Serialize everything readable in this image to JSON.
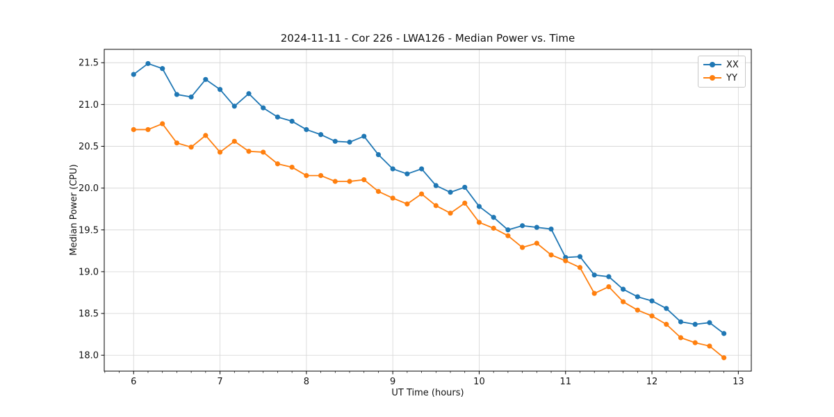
{
  "chart_data": {
    "type": "line",
    "title": "2024-11-11 - Cor 226 - LWA126 - Median Power vs. Time",
    "xlabel": "UT Time (hours)",
    "ylabel": "Median Power (CPU)",
    "xlim": [
      5.66,
      13.15
    ],
    "ylim": [
      17.81,
      21.66
    ],
    "xticks": [
      6,
      7,
      8,
      9,
      10,
      11,
      12,
      13
    ],
    "yticks": [
      18.0,
      18.5,
      19.0,
      19.5,
      20.0,
      20.5,
      21.0,
      21.5
    ],
    "x_minor_step": 0.1666667,
    "grid": true,
    "legend_position": "top-right",
    "x": [
      6.0,
      6.1667,
      6.3333,
      6.5,
      6.6667,
      6.8333,
      7.0,
      7.1667,
      7.3333,
      7.5,
      7.6667,
      7.8333,
      8.0,
      8.1667,
      8.3333,
      8.5,
      8.6667,
      8.8333,
      9.0,
      9.1667,
      9.3333,
      9.5,
      9.6667,
      9.8333,
      10.0,
      10.1667,
      10.3333,
      10.5,
      10.6667,
      10.8333,
      11.0,
      11.1667,
      11.3333,
      11.5,
      11.6667,
      11.8333,
      12.0,
      12.1667,
      12.3333,
      12.5,
      12.6667,
      12.8333
    ],
    "series": [
      {
        "name": "XX",
        "color": "#1f77b4",
        "values": [
          21.36,
          21.49,
          21.43,
          21.12,
          21.09,
          21.3,
          21.18,
          20.98,
          21.13,
          20.96,
          20.85,
          20.8,
          20.7,
          20.64,
          20.56,
          20.55,
          20.62,
          20.4,
          20.23,
          20.17,
          20.23,
          20.03,
          19.95,
          20.01,
          19.78,
          19.65,
          19.5,
          19.55,
          19.53,
          19.51,
          19.17,
          19.18,
          18.96,
          18.94,
          18.79,
          18.7,
          18.65,
          18.56,
          18.4,
          18.37,
          18.39,
          18.26
        ]
      },
      {
        "name": "YY",
        "color": "#ff7f0e",
        "values": [
          20.7,
          20.7,
          20.77,
          20.54,
          20.49,
          20.63,
          20.43,
          20.56,
          20.44,
          20.43,
          20.29,
          20.25,
          20.15,
          20.15,
          20.08,
          20.08,
          20.1,
          19.96,
          19.88,
          19.81,
          19.93,
          19.79,
          19.7,
          19.82,
          19.59,
          19.52,
          19.43,
          19.29,
          19.34,
          19.2,
          19.13,
          19.05,
          18.74,
          18.82,
          18.64,
          18.54,
          18.47,
          18.37,
          18.21,
          18.15,
          18.11,
          17.97
        ]
      }
    ]
  }
}
